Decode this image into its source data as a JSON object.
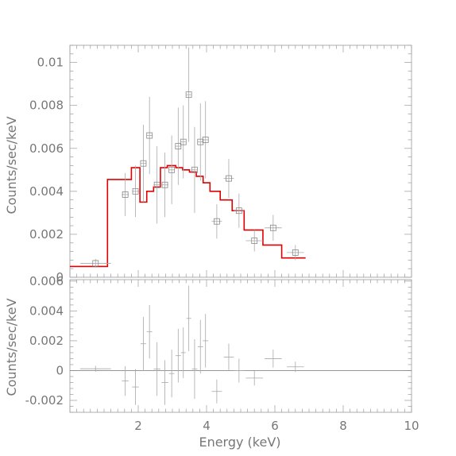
{
  "chart_data": [
    {
      "type": "scatter",
      "panel": "top",
      "ylabel": "Counts/sec/keV",
      "xlim": [
        0,
        10
      ],
      "ylim": [
        0,
        0.0108
      ],
      "yticks_major": [
        0,
        0.002,
        0.004,
        0.006,
        0.008,
        0.01
      ],
      "ytick_labels": [
        "0",
        "0.002",
        "0.004",
        "0.006",
        "0.008",
        "0.01"
      ],
      "points": [
        {
          "x": 0.75,
          "xerr": 0.45,
          "y": 0.00065,
          "yerr": 0.0002
        },
        {
          "x": 1.62,
          "xerr": 0.1,
          "y": 0.00385,
          "yerr": 0.001
        },
        {
          "x": 1.92,
          "xerr": 0.1,
          "y": 0.004,
          "yerr": 0.0012
        },
        {
          "x": 2.15,
          "xerr": 0.08,
          "y": 0.0053,
          "yerr": 0.0018
        },
        {
          "x": 2.33,
          "xerr": 0.08,
          "y": 0.0066,
          "yerr": 0.0018
        },
        {
          "x": 2.55,
          "xerr": 0.1,
          "y": 0.0043,
          "yerr": 0.0018
        },
        {
          "x": 2.78,
          "xerr": 0.1,
          "y": 0.0043,
          "yerr": 0.0015
        },
        {
          "x": 2.98,
          "xerr": 0.08,
          "y": 0.005,
          "yerr": 0.0016
        },
        {
          "x": 3.17,
          "xerr": 0.08,
          "y": 0.0061,
          "yerr": 0.0018
        },
        {
          "x": 3.32,
          "xerr": 0.07,
          "y": 0.0063,
          "yerr": 0.0017
        },
        {
          "x": 3.48,
          "xerr": 0.07,
          "y": 0.0085,
          "yerr": 0.0022
        },
        {
          "x": 3.65,
          "xerr": 0.08,
          "y": 0.005,
          "yerr": 0.002
        },
        {
          "x": 3.82,
          "xerr": 0.08,
          "y": 0.0063,
          "yerr": 0.0018
        },
        {
          "x": 3.97,
          "xerr": 0.08,
          "y": 0.0064,
          "yerr": 0.0018
        },
        {
          "x": 4.3,
          "xerr": 0.15,
          "y": 0.0026,
          "yerr": 0.0008
        },
        {
          "x": 4.65,
          "xerr": 0.15,
          "y": 0.0046,
          "yerr": 0.0009
        },
        {
          "x": 4.95,
          "xerr": 0.15,
          "y": 0.0031,
          "yerr": 0.0008
        },
        {
          "x": 5.4,
          "xerr": 0.25,
          "y": 0.0017,
          "yerr": 0.0005
        },
        {
          "x": 5.95,
          "xerr": 0.25,
          "y": 0.0023,
          "yerr": 0.0006
        },
        {
          "x": 6.6,
          "xerr": 0.25,
          "y": 0.00115,
          "yerr": 0.00035
        }
      ],
      "model": {
        "color": "#e00000",
        "steps": [
          {
            "x0": 0.0,
            "x1": 1.1,
            "y": 0.0005
          },
          {
            "x0": 1.1,
            "x1": 1.8,
            "y": 0.00455
          },
          {
            "x0": 1.8,
            "x1": 2.05,
            "y": 0.0051
          },
          {
            "x0": 2.05,
            "x1": 2.25,
            "y": 0.0035
          },
          {
            "x0": 2.25,
            "x1": 2.45,
            "y": 0.004
          },
          {
            "x0": 2.45,
            "x1": 2.65,
            "y": 0.0042
          },
          {
            "x0": 2.65,
            "x1": 2.85,
            "y": 0.0051
          },
          {
            "x0": 2.85,
            "x1": 3.1,
            "y": 0.0052
          },
          {
            "x0": 3.1,
            "x1": 3.3,
            "y": 0.0051
          },
          {
            "x0": 3.3,
            "x1": 3.5,
            "y": 0.005
          },
          {
            "x0": 3.5,
            "x1": 3.7,
            "y": 0.0049
          },
          {
            "x0": 3.7,
            "x1": 3.9,
            "y": 0.0047
          },
          {
            "x0": 3.9,
            "x1": 4.1,
            "y": 0.0044
          },
          {
            "x0": 4.1,
            "x1": 4.4,
            "y": 0.004
          },
          {
            "x0": 4.4,
            "x1": 4.75,
            "y": 0.0036
          },
          {
            "x0": 4.75,
            "x1": 5.1,
            "y": 0.0031
          },
          {
            "x0": 5.1,
            "x1": 5.65,
            "y": 0.0022
          },
          {
            "x0": 5.65,
            "x1": 6.2,
            "y": 0.0015
          },
          {
            "x0": 6.2,
            "x1": 6.9,
            "y": 0.0009
          }
        ]
      }
    },
    {
      "type": "scatter",
      "panel": "bottom",
      "xlabel": "Energy (keV)",
      "ylabel": "Counts/sec/keV",
      "xlim": [
        0,
        10
      ],
      "ylim": [
        -0.0028,
        0.0061
      ],
      "xticks_major": [
        2,
        4,
        6,
        8,
        10
      ],
      "xtick_labels": [
        "2",
        "4",
        "6",
        "8",
        "10"
      ],
      "yticks_major": [
        -0.002,
        0,
        0.002,
        0.004,
        0.006
      ],
      "ytick_labels": [
        "-0.002",
        "0",
        "0.002",
        "0.004",
        "0.006"
      ],
      "reference_line_y": 0,
      "points": [
        {
          "x": 0.75,
          "xerr": 0.45,
          "y": 0.00012,
          "yerr": 0.0002
        },
        {
          "x": 1.62,
          "xerr": 0.1,
          "y": -0.0007,
          "yerr": 0.001
        },
        {
          "x": 1.92,
          "xerr": 0.1,
          "y": -0.0011,
          "yerr": 0.0012
        },
        {
          "x": 2.15,
          "xerr": 0.08,
          "y": 0.0018,
          "yerr": 0.0018
        },
        {
          "x": 2.33,
          "xerr": 0.08,
          "y": 0.0026,
          "yerr": 0.0018
        },
        {
          "x": 2.55,
          "xerr": 0.1,
          "y": 0.0001,
          "yerr": 0.0018
        },
        {
          "x": 2.78,
          "xerr": 0.1,
          "y": -0.0008,
          "yerr": 0.0015
        },
        {
          "x": 2.98,
          "xerr": 0.08,
          "y": -0.0002,
          "yerr": 0.0016
        },
        {
          "x": 3.17,
          "xerr": 0.08,
          "y": 0.001,
          "yerr": 0.0018
        },
        {
          "x": 3.32,
          "xerr": 0.07,
          "y": 0.0012,
          "yerr": 0.0017
        },
        {
          "x": 3.48,
          "xerr": 0.07,
          "y": 0.0035,
          "yerr": 0.0022
        },
        {
          "x": 3.65,
          "xerr": 0.08,
          "y": 0.0001,
          "yerr": 0.002
        },
        {
          "x": 3.82,
          "xerr": 0.08,
          "y": 0.0016,
          "yerr": 0.0018
        },
        {
          "x": 3.97,
          "xerr": 0.08,
          "y": 0.002,
          "yerr": 0.0018
        },
        {
          "x": 4.3,
          "xerr": 0.15,
          "y": -0.0014,
          "yerr": 0.0008
        },
        {
          "x": 4.65,
          "xerr": 0.15,
          "y": 0.0009,
          "yerr": 0.0009
        },
        {
          "x": 4.95,
          "xerr": 0.15,
          "y": 0.0,
          "yerr": 0.0008
        },
        {
          "x": 5.4,
          "xerr": 0.25,
          "y": -0.0005,
          "yerr": 0.0005
        },
        {
          "x": 5.95,
          "xerr": 0.25,
          "y": 0.0008,
          "yerr": 0.0006
        },
        {
          "x": 6.6,
          "xerr": 0.25,
          "y": 0.00025,
          "yerr": 0.00035
        }
      ]
    }
  ]
}
